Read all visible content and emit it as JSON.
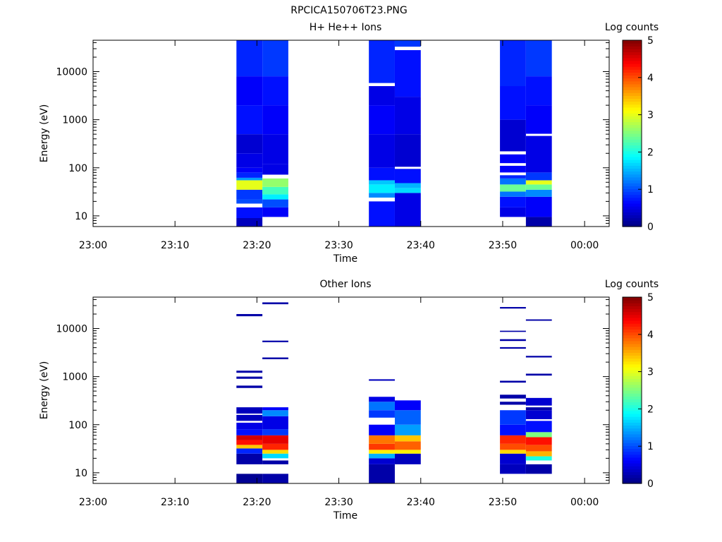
{
  "title": "RPCICA150706T23.PNG",
  "colors": {
    "background": "#ffffff",
    "axis": "#000000",
    "gap": "#ffffff",
    "colormap": "jet"
  },
  "chart_data": [
    {
      "type": "heatmap",
      "title": "H+ He++ Ions",
      "xlabel": "Time",
      "ylabel": "Energy (eV)",
      "xlim": [
        "23:00",
        "00:03"
      ],
      "x_ticks": [
        "23:00",
        "23:10",
        "23:20",
        "23:30",
        "23:40",
        "23:50",
        "00:00"
      ],
      "y_scale": "log",
      "ylim": [
        6,
        45000
      ],
      "y_ticks": [
        "10",
        "100",
        "1000",
        "10000"
      ],
      "colorbar": {
        "label": "Log counts",
        "range": [
          0,
          5
        ],
        "ticks": [
          "0",
          "1",
          "2",
          "3",
          "4",
          "5"
        ]
      },
      "columns": [
        {
          "start": "23:17:30",
          "end": "23:20:40",
          "bands": [
            {
              "from": 6,
              "to": 9,
              "value": 0.3
            },
            {
              "from": 9,
              "to": 15,
              "value": 0.7
            },
            {
              "from": 18,
              "to": 22,
              "value": 1.0
            },
            {
              "from": 22,
              "to": 35,
              "value": 0.9
            },
            {
              "from": 35,
              "to": 55,
              "value": 3.0
            },
            {
              "from": 55,
              "to": 62,
              "value": 1.4
            },
            {
              "from": 62,
              "to": 80,
              "value": 0.8
            },
            {
              "from": 80,
              "to": 100,
              "value": 0.6
            },
            {
              "from": 100,
              "to": 200,
              "value": 0.5
            },
            {
              "from": 200,
              "to": 500,
              "value": 0.4
            },
            {
              "from": 500,
              "to": 2000,
              "value": 0.7
            },
            {
              "from": 2000,
              "to": 8000,
              "value": 0.6
            },
            {
              "from": 8000,
              "to": 45000,
              "value": 0.8
            }
          ]
        },
        {
          "start": "23:20:40",
          "end": "23:23:50",
          "bands": [
            {
              "from": 9.5,
              "to": 15,
              "value": 0.6
            },
            {
              "from": 15,
              "to": 22,
              "value": 1.0
            },
            {
              "from": 22,
              "to": 28,
              "value": 1.8
            },
            {
              "from": 28,
              "to": 40,
              "value": 2.2
            },
            {
              "from": 40,
              "to": 60,
              "value": 2.6
            },
            {
              "from": 72,
              "to": 120,
              "value": 0.5
            },
            {
              "from": 120,
              "to": 500,
              "value": 0.5
            },
            {
              "from": 500,
              "to": 2000,
              "value": 0.6
            },
            {
              "from": 2000,
              "to": 8000,
              "value": 0.7
            },
            {
              "from": 8000,
              "to": 45000,
              "value": 0.9
            }
          ]
        },
        {
          "start": "23:33:40",
          "end": "23:36:50",
          "bands": [
            {
              "from": 6,
              "to": 20,
              "value": 0.7
            },
            {
              "from": 24,
              "to": 30,
              "value": 1.3
            },
            {
              "from": 30,
              "to": 45,
              "value": 1.8
            },
            {
              "from": 45,
              "to": 55,
              "value": 1.6
            },
            {
              "from": 55,
              "to": 100,
              "value": 0.7
            },
            {
              "from": 100,
              "to": 500,
              "value": 0.5
            },
            {
              "from": 500,
              "to": 2000,
              "value": 0.6
            },
            {
              "from": 2000,
              "to": 5000,
              "value": 0.5
            },
            {
              "from": 5800,
              "to": 45000,
              "value": 0.8
            }
          ]
        },
        {
          "start": "23:36:50",
          "end": "23:40:00",
          "bands": [
            {
              "from": 6,
              "to": 30,
              "value": 0.5
            },
            {
              "from": 30,
              "to": 38,
              "value": 1.7
            },
            {
              "from": 38,
              "to": 48,
              "value": 1.5
            },
            {
              "from": 48,
              "to": 95,
              "value": 0.7
            },
            {
              "from": 105,
              "to": 500,
              "value": 0.4
            },
            {
              "from": 500,
              "to": 3000,
              "value": 0.5
            },
            {
              "from": 3000,
              "to": 28000,
              "value": 0.7
            },
            {
              "from": 33000,
              "to": 45000,
              "value": 0.9
            }
          ]
        },
        {
          "start": "23:49:40",
          "end": "23:52:50",
          "bands": [
            {
              "from": 9.5,
              "to": 15,
              "value": 0.5
            },
            {
              "from": 15,
              "to": 25,
              "value": 0.7
            },
            {
              "from": 25,
              "to": 32,
              "value": 1.2
            },
            {
              "from": 32,
              "to": 45,
              "value": 2.4
            },
            {
              "from": 45,
              "to": 60,
              "value": 1.2
            },
            {
              "from": 60,
              "to": 70,
              "value": 0.8
            },
            {
              "from": 80,
              "to": 110,
              "value": 0.6
            },
            {
              "from": 125,
              "to": 190,
              "value": 0.6
            },
            {
              "from": 220,
              "to": 1000,
              "value": 0.4
            },
            {
              "from": 1000,
              "to": 5000,
              "value": 0.7
            },
            {
              "from": 5000,
              "to": 45000,
              "value": 0.8
            }
          ]
        },
        {
          "start": "23:52:50",
          "end": "23:56:00",
          "bands": [
            {
              "from": 6,
              "to": 9.5,
              "value": 0.2
            },
            {
              "from": 9.5,
              "to": 25,
              "value": 0.6
            },
            {
              "from": 25,
              "to": 35,
              "value": 1.3
            },
            {
              "from": 35,
              "to": 45,
              "value": 2.4
            },
            {
              "from": 45,
              "to": 55,
              "value": 3.0
            },
            {
              "from": 55,
              "to": 80,
              "value": 0.9
            },
            {
              "from": 80,
              "to": 460,
              "value": 0.5
            },
            {
              "from": 510,
              "to": 2000,
              "value": 0.6
            },
            {
              "from": 2000,
              "to": 8000,
              "value": 0.7
            },
            {
              "from": 8000,
              "to": 45000,
              "value": 0.9
            }
          ]
        }
      ]
    },
    {
      "type": "heatmap",
      "title": "Other Ions",
      "xlabel": "Time",
      "ylabel": "Energy (eV)",
      "xlim": [
        "23:00",
        "00:03"
      ],
      "x_ticks": [
        "23:00",
        "23:10",
        "23:20",
        "23:30",
        "23:40",
        "23:50",
        "00:00"
      ],
      "y_scale": "log",
      "ylim": [
        6,
        45000
      ],
      "y_ticks": [
        "10",
        "100",
        "1000",
        "10000"
      ],
      "colorbar": {
        "label": "Log counts",
        "range": [
          0,
          5
        ],
        "ticks": [
          "0",
          "1",
          "2",
          "3",
          "4",
          "5"
        ]
      },
      "columns": [
        {
          "start": "23:17:30",
          "end": "23:20:40",
          "bands": [
            {
              "from": 6,
              "to": 9.5,
              "value": 0.1
            },
            {
              "from": 15,
              "to": 25,
              "value": 0.2
            },
            {
              "from": 25,
              "to": 32,
              "value": 0.8
            },
            {
              "from": 32,
              "to": 38,
              "value": 3.4
            },
            {
              "from": 38,
              "to": 48,
              "value": 4.3
            },
            {
              "from": 48,
              "to": 60,
              "value": 4.6
            },
            {
              "from": 60,
              "to": 80,
              "value": 0.7
            },
            {
              "from": 80,
              "to": 110,
              "value": 0.5
            },
            {
              "from": 120,
              "to": 160,
              "value": 0.3
            },
            {
              "from": 170,
              "to": 230,
              "value": 0.3
            },
            {
              "from": 580,
              "to": 650,
              "value": 0.2
            },
            {
              "from": 900,
              "to": 1000,
              "value": 0.2
            },
            {
              "from": 1200,
              "to": 1330,
              "value": 0.2
            },
            {
              "from": 18000,
              "to": 20000,
              "value": 0.2
            }
          ]
        },
        {
          "start": "23:20:40",
          "end": "23:23:50",
          "bands": [
            {
              "from": 6,
              "to": 9.5,
              "value": 0.2
            },
            {
              "from": 15,
              "to": 18,
              "value": 0.2
            },
            {
              "from": 20,
              "to": 25,
              "value": 1.7
            },
            {
              "from": 25,
              "to": 30,
              "value": 3.3
            },
            {
              "from": 30,
              "to": 40,
              "value": 4.2
            },
            {
              "from": 40,
              "to": 60,
              "value": 4.5
            },
            {
              "from": 60,
              "to": 80,
              "value": 0.9
            },
            {
              "from": 80,
              "to": 150,
              "value": 0.5
            },
            {
              "from": 150,
              "to": 200,
              "value": 1.3
            },
            {
              "from": 200,
              "to": 230,
              "value": 0.6
            },
            {
              "from": 2300,
              "to": 2500,
              "value": 0.2
            },
            {
              "from": 5200,
              "to": 5600,
              "value": 0.2
            },
            {
              "from": 32000,
              "to": 35000,
              "value": 0.2
            }
          ]
        },
        {
          "start": "23:33:40",
          "end": "23:36:50",
          "bands": [
            {
              "from": 6,
              "to": 15,
              "value": 0.2
            },
            {
              "from": 15,
              "to": 20,
              "value": 0.4
            },
            {
              "from": 20,
              "to": 25,
              "value": 1.5
            },
            {
              "from": 25,
              "to": 30,
              "value": 3.2
            },
            {
              "from": 30,
              "to": 40,
              "value": 4.1
            },
            {
              "from": 40,
              "to": 60,
              "value": 3.8
            },
            {
              "from": 60,
              "to": 100,
              "value": 0.6
            },
            {
              "from": 140,
              "to": 200,
              "value": 0.9
            },
            {
              "from": 200,
              "to": 300,
              "value": 1.2
            },
            {
              "from": 300,
              "to": 380,
              "value": 0.5
            },
            {
              "from": 820,
              "to": 880,
              "value": 0.3
            }
          ]
        },
        {
          "start": "23:36:50",
          "end": "23:40:00",
          "bands": [
            {
              "from": 15,
              "to": 25,
              "value": 0.3
            },
            {
              "from": 25,
              "to": 30,
              "value": 3.2
            },
            {
              "from": 30,
              "to": 45,
              "value": 3.9
            },
            {
              "from": 45,
              "to": 60,
              "value": 3.4
            },
            {
              "from": 60,
              "to": 100,
              "value": 1.4
            },
            {
              "from": 100,
              "to": 200,
              "value": 1.1
            },
            {
              "from": 200,
              "to": 320,
              "value": 0.6
            }
          ]
        },
        {
          "start": "23:49:40",
          "end": "23:52:50",
          "bands": [
            {
              "from": 9.5,
              "to": 15,
              "value": 0.3
            },
            {
              "from": 15,
              "to": 25,
              "value": 0.4
            },
            {
              "from": 25,
              "to": 30,
              "value": 3.3
            },
            {
              "from": 30,
              "to": 40,
              "value": 4.0
            },
            {
              "from": 40,
              "to": 60,
              "value": 4.2
            },
            {
              "from": 60,
              "to": 100,
              "value": 0.7
            },
            {
              "from": 100,
              "to": 200,
              "value": 0.9
            },
            {
              "from": 260,
              "to": 300,
              "value": 0.2
            },
            {
              "from": 350,
              "to": 420,
              "value": 0.2
            },
            {
              "from": 750,
              "to": 820,
              "value": 0.2
            },
            {
              "from": 3800,
              "to": 4100,
              "value": 0.2
            },
            {
              "from": 5500,
              "to": 6000,
              "value": 0.2
            },
            {
              "from": 8500,
              "to": 9000,
              "value": 0.2
            },
            {
              "from": 26000,
              "to": 28000,
              "value": 0.2
            }
          ]
        },
        {
          "start": "23:52:50",
          "end": "23:56:00",
          "bands": [
            {
              "from": 9.5,
              "to": 15,
              "value": 0.2
            },
            {
              "from": 18,
              "to": 22,
              "value": 2.0
            },
            {
              "from": 22,
              "to": 28,
              "value": 3.5
            },
            {
              "from": 28,
              "to": 38,
              "value": 4.0
            },
            {
              "from": 38,
              "to": 55,
              "value": 4.3
            },
            {
              "from": 55,
              "to": 70,
              "value": 2.5
            },
            {
              "from": 70,
              "to": 120,
              "value": 0.7
            },
            {
              "from": 130,
              "to": 200,
              "value": 0.4
            },
            {
              "from": 200,
              "to": 230,
              "value": 0.2
            },
            {
              "from": 250,
              "to": 360,
              "value": 0.4
            },
            {
              "from": 1050,
              "to": 1150,
              "value": 0.2
            },
            {
              "from": 2500,
              "to": 2700,
              "value": 0.2
            },
            {
              "from": 14500,
              "to": 15500,
              "value": 0.2
            }
          ]
        }
      ]
    }
  ]
}
